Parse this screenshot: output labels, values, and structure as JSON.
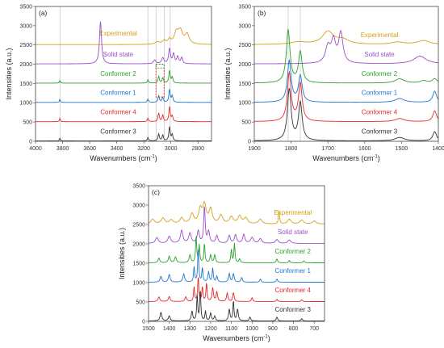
{
  "chart_data": [
    {
      "panel": "(a)",
      "type": "line",
      "xlabel": "Wavenumbers (cm",
      "xlabel_sup": "-1",
      "xlabel_close": ")",
      "ylabel": "Intensities (a.u.)",
      "xlim": [
        4000,
        2700
      ],
      "ylim": [
        0,
        3500
      ],
      "xticks": [
        4000,
        3800,
        3600,
        3400,
        3200,
        3000,
        2800
      ],
      "yticks": [
        0,
        500,
        1000,
        1500,
        2000,
        2500,
        3000,
        3500
      ],
      "grid": false,
      "reference_lines": [
        3820,
        3170,
        3110,
        3050,
        3005
      ],
      "highlight_boxes": [
        {
          "x": [
            3110,
            3050
          ],
          "y": [
            1150,
            2000
          ],
          "color": "#d62728"
        },
        {
          "x": [
            3110,
            3050
          ],
          "y": [
            1900,
            2000
          ],
          "color": "#2ca02c"
        }
      ],
      "series": [
        {
          "name": "Experimental",
          "color": "#d4a017",
          "offset": 2500,
          "peaks": [
            [
              3100,
              60,
              20
            ],
            [
              3050,
              90,
              15
            ],
            [
              3010,
              120,
              12
            ],
            [
              2960,
              280,
              18
            ],
            [
              2930,
              330,
              20
            ],
            [
              2880,
              250,
              18
            ]
          ]
        },
        {
          "name": "Solid state",
          "color": "#9b4dca",
          "offset": 2000,
          "peaks": [
            [
              3520,
              1100,
              9
            ],
            [
              3120,
              100,
              10
            ],
            [
              3060,
              150,
              10
            ],
            [
              3010,
              390,
              8
            ],
            [
              2980,
              250,
              8
            ],
            [
              2950,
              180,
              8
            ],
            [
              2920,
              160,
              8
            ]
          ]
        },
        {
          "name": "Conformer 2",
          "color": "#2ca02c",
          "offset": 1500,
          "peaks": [
            [
              3820,
              70,
              4
            ],
            [
              3170,
              90,
              5
            ],
            [
              3090,
              170,
              6
            ],
            [
              3060,
              140,
              6
            ],
            [
              3010,
              320,
              6
            ],
            [
              2990,
              150,
              6
            ]
          ]
        },
        {
          "name": "Conformer 1",
          "color": "#1f77d0",
          "offset": 1000,
          "peaks": [
            [
              3820,
              80,
              4
            ],
            [
              3170,
              90,
              5
            ],
            [
              3090,
              170,
              6
            ],
            [
              3060,
              130,
              6
            ],
            [
              3010,
              330,
              6
            ],
            [
              2990,
              170,
              6
            ]
          ]
        },
        {
          "name": "Conformer 4",
          "color": "#e8282b",
          "offset": 500,
          "peaks": [
            [
              3820,
              90,
              4
            ],
            [
              3170,
              90,
              5
            ],
            [
              3090,
              220,
              6
            ],
            [
              3060,
              170,
              6
            ],
            [
              3010,
              380,
              6
            ],
            [
              2990,
              140,
              6
            ]
          ]
        },
        {
          "name": "Conformer 3",
          "color": "#333333",
          "offset": 0,
          "peaks": [
            [
              3820,
              70,
              4
            ],
            [
              3170,
              90,
              5
            ],
            [
              3090,
              180,
              6
            ],
            [
              3060,
              150,
              6
            ],
            [
              3010,
              360,
              6
            ],
            [
              2990,
              160,
              6
            ]
          ]
        }
      ]
    },
    {
      "panel": "(b)",
      "type": "line",
      "xlabel": "Wavenumbers (cm",
      "xlabel_sup": "-1",
      "xlabel_close": ")",
      "ylabel": "Intensities (a.u.)",
      "xlim": [
        1900,
        1400
      ],
      "ylim": [
        0,
        3500
      ],
      "xticks": [
        1900,
        1800,
        1700,
        1600,
        1500,
        1400
      ],
      "yticks": [
        0,
        500,
        1000,
        1500,
        2000,
        2500,
        3000,
        3500
      ],
      "grid": false,
      "reference_lines": [
        1808,
        1775
      ],
      "series": [
        {
          "name": "Experimental",
          "color": "#d4a017",
          "offset": 2500,
          "peaks": [
            [
              1780,
              60,
              25
            ],
            [
              1700,
              330,
              18
            ],
            [
              1660,
              120,
              20
            ],
            [
              1510,
              60,
              20
            ],
            [
              1440,
              100,
              20
            ]
          ]
        },
        {
          "name": "Solid state",
          "color": "#9b4dca",
          "offset": 2000,
          "peaks": [
            [
              1700,
              420,
              8
            ],
            [
              1685,
              560,
              7
            ],
            [
              1665,
              780,
              7
            ],
            [
              1450,
              200,
              20
            ]
          ]
        },
        {
          "name": "Conformer 2",
          "color": "#2ca02c",
          "offset": 1500,
          "peaks": [
            [
              1808,
              1370,
              6
            ],
            [
              1775,
              800,
              6
            ],
            [
              1505,
              110,
              15
            ],
            [
              1440,
              60,
              10
            ],
            [
              1410,
              110,
              8
            ]
          ]
        },
        {
          "name": "Conformer 1",
          "color": "#1f77d0",
          "offset": 1000,
          "peaks": [
            [
              1805,
              1070,
              6
            ],
            [
              1775,
              680,
              6
            ],
            [
              1505,
              100,
              15
            ],
            [
              1410,
              290,
              6
            ]
          ]
        },
        {
          "name": "Conformer 4",
          "color": "#e8282b",
          "offset": 500,
          "peaks": [
            [
              1805,
              1250,
              6
            ],
            [
              1775,
              980,
              6
            ],
            [
              1505,
              80,
              15
            ],
            [
              1410,
              280,
              6
            ]
          ]
        },
        {
          "name": "Conformer 3",
          "color": "#333333",
          "offset": 0,
          "peaks": [
            [
              1805,
              1330,
              6
            ],
            [
              1775,
              980,
              6
            ],
            [
              1505,
              90,
              15
            ],
            [
              1410,
              240,
              6
            ]
          ]
        }
      ]
    },
    {
      "panel": "(c)",
      "type": "line",
      "xlabel": "Wavenumbers (cm",
      "xlabel_sup": "-1",
      "xlabel_close": ")",
      "ylabel": "Intensities (a.u.)",
      "xlim": [
        1500,
        650
      ],
      "ylim": [
        0,
        3500
      ],
      "xticks": [
        1500,
        1400,
        1300,
        1200,
        1100,
        1000,
        900,
        800,
        700
      ],
      "yticks": [
        0,
        500,
        1000,
        1500,
        2000,
        2500,
        3000,
        3500
      ],
      "grid": false,
      "reference_lines": [],
      "series": [
        {
          "name": "Experimental",
          "color": "#d4a017",
          "offset": 2500,
          "peaks": [
            [
              1480,
              120,
              10
            ],
            [
              1430,
              150,
              10
            ],
            [
              1390,
              100,
              10
            ],
            [
              1340,
              150,
              10
            ],
            [
              1290,
              250,
              10
            ],
            [
              1250,
              350,
              9
            ],
            [
              1230,
              480,
              10
            ],
            [
              1200,
              370,
              9
            ],
            [
              1150,
              220,
              10
            ],
            [
              1100,
              180,
              10
            ],
            [
              1060,
              200,
              10
            ],
            [
              1030,
              150,
              10
            ],
            [
              960,
              120,
              10
            ],
            [
              870,
              360,
              3
            ],
            [
              820,
              120,
              10
            ],
            [
              760,
              100,
              10
            ],
            [
              700,
              80,
              10
            ]
          ]
        },
        {
          "name": "Solid state",
          "color": "#9b4dca",
          "offset": 2000,
          "peaks": [
            [
              1460,
              150,
              8
            ],
            [
              1400,
              180,
              8
            ],
            [
              1340,
              330,
              7
            ],
            [
              1300,
              260,
              7
            ],
            [
              1260,
              320,
              6
            ],
            [
              1230,
              950,
              4
            ],
            [
              1210,
              300,
              6
            ],
            [
              1170,
              200,
              6
            ],
            [
              1110,
              200,
              6
            ],
            [
              1080,
              220,
              6
            ],
            [
              1040,
              230,
              6
            ],
            [
              1000,
              150,
              8
            ],
            [
              960,
              120,
              8
            ],
            [
              880,
              100,
              8
            ],
            [
              820,
              90,
              8
            ]
          ]
        },
        {
          "name": "Conformer 2",
          "color": "#2ca02c",
          "offset": 1500,
          "peaks": [
            [
              1450,
              120,
              5
            ],
            [
              1400,
              170,
              5
            ],
            [
              1370,
              150,
              5
            ],
            [
              1300,
              200,
              5
            ],
            [
              1270,
              700,
              3
            ],
            [
              1255,
              450,
              3
            ],
            [
              1230,
              500,
              3
            ],
            [
              1200,
              200,
              4
            ],
            [
              1180,
              200,
              4
            ],
            [
              1100,
              350,
              3
            ],
            [
              1085,
              500,
              3
            ],
            [
              1060,
              100,
              4
            ],
            [
              880,
              100,
              4
            ],
            [
              820,
              60,
              4
            ],
            [
              750,
              50,
              4
            ]
          ]
        },
        {
          "name": "Conformer 1",
          "color": "#1f77d0",
          "offset": 1000,
          "peaks": [
            [
              1440,
              150,
              5
            ],
            [
              1400,
              200,
              5
            ],
            [
              1330,
              210,
              5
            ],
            [
              1280,
              400,
              3
            ],
            [
              1260,
              890,
              3
            ],
            [
              1240,
              370,
              3
            ],
            [
              1210,
              260,
              4
            ],
            [
              1190,
              360,
              3
            ],
            [
              1170,
              150,
              4
            ],
            [
              1110,
              220,
              4
            ],
            [
              1090,
              220,
              4
            ],
            [
              1050,
              120,
              4
            ],
            [
              960,
              80,
              4
            ],
            [
              880,
              80,
              4
            ]
          ]
        },
        {
          "name": "Conformer 4",
          "color": "#e8282b",
          "offset": 500,
          "peaks": [
            [
              1450,
              120,
              5
            ],
            [
              1400,
              130,
              5
            ],
            [
              1320,
              120,
              5
            ],
            [
              1280,
              380,
              3
            ],
            [
              1260,
              650,
              3
            ],
            [
              1240,
              380,
              3
            ],
            [
              1220,
              480,
              3
            ],
            [
              1190,
              350,
              4
            ],
            [
              1170,
              250,
              4
            ],
            [
              1120,
              220,
              4
            ],
            [
              1090,
              230,
              4
            ],
            [
              1000,
              100,
              4
            ],
            [
              880,
              60,
              4
            ],
            [
              760,
              50,
              4
            ]
          ]
        },
        {
          "name": "Conformer 3",
          "color": "#333333",
          "offset": 0,
          "peaks": [
            [
              1440,
              220,
              5
            ],
            [
              1400,
              130,
              5
            ],
            [
              1290,
              250,
              4
            ],
            [
              1265,
              650,
              3
            ],
            [
              1250,
              800,
              3
            ],
            [
              1225,
              250,
              3
            ],
            [
              1200,
              200,
              4
            ],
            [
              1180,
              120,
              4
            ],
            [
              1110,
              300,
              4
            ],
            [
              1090,
              520,
              3
            ],
            [
              1070,
              300,
              4
            ],
            [
              1010,
              100,
              4
            ],
            [
              880,
              100,
              4
            ],
            [
              760,
              60,
              4
            ]
          ]
        }
      ]
    }
  ]
}
